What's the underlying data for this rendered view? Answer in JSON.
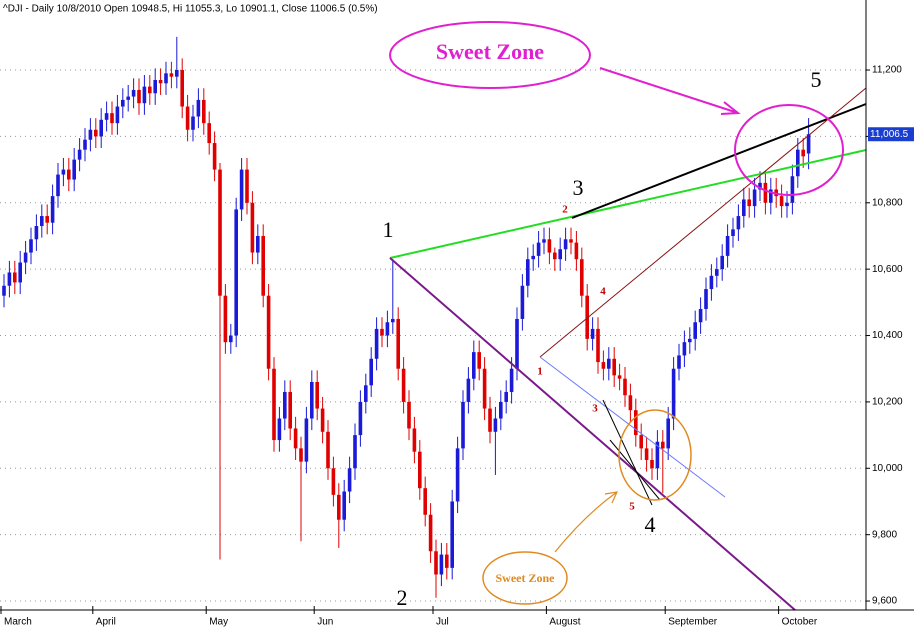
{
  "chart_data": {
    "type": "candlestick",
    "title": "^DJI - Daily 10/8/2010 Open 10948.5, Hi 11055.3, Lo 10901.1, Close 11006.5 (0.5%)",
    "up_color": "#1a1ad8",
    "down_color": "#e00000",
    "ylim": [
      9573,
      11411
    ],
    "yticks": [
      {
        "value": 9600,
        "label": "9,600"
      },
      {
        "value": 9800,
        "label": "9,800"
      },
      {
        "value": 10000,
        "label": "10,000"
      },
      {
        "value": 10200,
        "label": "10,200"
      },
      {
        "value": 10400,
        "label": "10,400"
      },
      {
        "value": 10600,
        "label": "10,600"
      },
      {
        "value": 10800,
        "label": "10,800"
      },
      {
        "value": 11000,
        "label": "11,000"
      },
      {
        "value": 11200,
        "label": "11,200"
      }
    ],
    "grid": true,
    "last_label": "11,006.5",
    "callouts": [
      "Sweet Zone",
      "Sweet Zone"
    ],
    "wave_labels": [
      "1",
      "2",
      "3",
      "4",
      "5"
    ],
    "sub_wave_labels": [
      "2",
      "1",
      "4",
      "3",
      "5"
    ],
    "categories": [
      "March",
      null,
      null,
      null,
      null,
      null,
      null,
      null,
      null,
      null,
      null,
      null,
      null,
      null,
      null,
      null,
      null,
      "April",
      null,
      null,
      null,
      null,
      null,
      null,
      null,
      null,
      null,
      null,
      null,
      null,
      null,
      null,
      null,
      null,
      null,
      null,
      null,
      null,
      "May",
      null,
      null,
      null,
      null,
      null,
      null,
      null,
      null,
      null,
      null,
      null,
      null,
      null,
      null,
      null,
      null,
      null,
      null,
      null,
      "Jun",
      null,
      null,
      null,
      null,
      null,
      null,
      null,
      null,
      null,
      null,
      null,
      null,
      null,
      null,
      null,
      null,
      null,
      null,
      null,
      null,
      null,
      "Jul",
      null,
      null,
      null,
      null,
      null,
      null,
      null,
      null,
      null,
      null,
      null,
      null,
      null,
      null,
      null,
      null,
      null,
      null,
      null,
      null,
      "August",
      null,
      null,
      null,
      null,
      null,
      null,
      null,
      null,
      null,
      null,
      null,
      null,
      null,
      null,
      null,
      null,
      null,
      null,
      null,
      null,
      null,
      "September",
      null,
      null,
      null,
      null,
      null,
      null,
      null,
      null,
      null,
      null,
      null,
      null,
      null,
      null,
      null,
      null,
      null,
      null,
      null,
      null,
      "October",
      null,
      null,
      null,
      null,
      null
    ],
    "open": [
      10520,
      10550,
      10590,
      10560,
      10620,
      10650,
      10690,
      10730,
      10760,
      10740,
      10820,
      10885,
      10900,
      10870,
      10930,
      10960,
      10990,
      11020,
      11000,
      11050,
      11070,
      11040,
      11090,
      11110,
      11120,
      11140,
      11100,
      11150,
      11130,
      11170,
      11160,
      11190,
      11180,
      11200,
      11090,
      11020,
      11060,
      11110,
      11040,
      10980,
      10900,
      10520,
      10380,
      10400,
      10780,
      10900,
      10800,
      10650,
      10700,
      10520,
      10300,
      10085,
      10150,
      10230,
      10120,
      10060,
      10020,
      10150,
      10260,
      10180,
      10110,
      10000,
      9920,
      9845,
      9930,
      10000,
      10100,
      10200,
      10250,
      10330,
      10420,
      10400,
      10440,
      10450,
      10300,
      10200,
      10120,
      10050,
      9940,
      9860,
      9750,
      9680,
      9740,
      9700,
      9900,
      10060,
      10200,
      10270,
      10350,
      10300,
      10180,
      10110,
      10150,
      10200,
      10230,
      10300,
      10450,
      10550,
      10630,
      10640,
      10680,
      10690,
      10650,
      10630,
      10660,
      10690,
      10680,
      10630,
      10520,
      10390,
      10420,
      10320,
      10300,
      10330,
      10280,
      10270,
      10220,
      10175,
      10100,
      10060,
      10025,
      10000,
      10080,
      10060,
      10150,
      10300,
      10340,
      10380,
      10390,
      10440,
      10480,
      10540,
      10580,
      10600,
      10640,
      10700,
      10720,
      10760,
      10810,
      10790,
      10840,
      10860,
      10800,
      10840,
      10820,
      10790,
      10800,
      10880,
      10960,
      10948.5
    ],
    "high": [
      10585,
      10625,
      10625,
      10655,
      10685,
      10725,
      10765,
      10795,
      10795,
      10855,
      10920,
      10935,
      10935,
      10965,
      10995,
      11025,
      11055,
      11055,
      11085,
      11105,
      11105,
      11125,
      11145,
      11155,
      11175,
      11175,
      11185,
      11185,
      11205,
      11205,
      11225,
      11225,
      11300,
      11235,
      11125,
      11095,
      11145,
      11145,
      11075,
      11015,
      10920,
      10555,
      10435,
      10815,
      10935,
      10935,
      10835,
      10735,
      10735,
      10555,
      10335,
      10185,
      10265,
      10265,
      10155,
      10095,
      10185,
      10295,
      10295,
      10215,
      10145,
      10035,
      9955,
      9965,
      10035,
      10135,
      10235,
      10285,
      10365,
      10455,
      10455,
      10475,
      10630,
      10485,
      10335,
      10235,
      10155,
      10085,
      9975,
      9895,
      9785,
      9775,
      9775,
      9935,
      10095,
      10235,
      10305,
      10385,
      10385,
      10335,
      10215,
      10185,
      10235,
      10265,
      10335,
      10485,
      10585,
      10665,
      10675,
      10715,
      10725,
      10725,
      10665,
      10695,
      10725,
      10725,
      10715,
      10665,
      10555,
      10455,
      10455,
      10355,
      10365,
      10365,
      10315,
      10305,
      10255,
      10210,
      10135,
      10095,
      10060,
      10115,
      10115,
      10185,
      10335,
      10375,
      10415,
      10425,
      10475,
      10515,
      10575,
      10615,
      10635,
      10675,
      10735,
      10755,
      10795,
      10845,
      10845,
      10875,
      10895,
      10895,
      10875,
      10875,
      10855,
      10835,
      10915,
      10995,
      10995,
      11055.3
    ],
    "low": [
      10485,
      10515,
      10525,
      10525,
      10585,
      10615,
      10655,
      10695,
      10705,
      10705,
      10785,
      10850,
      10835,
      10835,
      10895,
      10925,
      10955,
      10965,
      10965,
      11015,
      11005,
      11005,
      11055,
      11075,
      11085,
      11065,
      11065,
      11095,
      11095,
      11125,
      11125,
      11145,
      11145,
      11055,
      10985,
      10985,
      11025,
      11005,
      10945,
      10865,
      9725,
      10345,
      10345,
      10365,
      10745,
      10765,
      10615,
      10615,
      10485,
      10265,
      10050,
      10050,
      10115,
      10085,
      10025,
      9780,
      9985,
      10115,
      10145,
      10075,
      9965,
      9885,
      9760,
      9810,
      9895,
      9965,
      10065,
      10165,
      10215,
      10295,
      10365,
      10365,
      10405,
      10265,
      10165,
      10085,
      10015,
      9905,
      9825,
      9715,
      9610,
      9645,
      9665,
      9665,
      9865,
      10025,
      10165,
      10235,
      10265,
      10145,
      10075,
      9980,
      10115,
      10165,
      10195,
      10265,
      10415,
      10515,
      10595,
      10605,
      10645,
      10615,
      10595,
      10595,
      10625,
      10645,
      10595,
      10485,
      10355,
      10355,
      10285,
      10265,
      10265,
      10245,
      10235,
      10185,
      10140,
      10065,
      10025,
      9990,
      9965,
      9965,
      9925,
      10025,
      10115,
      10265,
      10305,
      10345,
      10355,
      10405,
      10445,
      10505,
      10545,
      10565,
      10605,
      10665,
      10685,
      10725,
      10755,
      10755,
      10805,
      10765,
      10765,
      10785,
      10755,
      10755,
      10765,
      10845,
      10905,
      10901.1
    ],
    "close": [
      10550,
      10590,
      10560,
      10620,
      10650,
      10690,
      10730,
      10760,
      10740,
      10820,
      10885,
      10900,
      10870,
      10930,
      10960,
      10990,
      11020,
      11000,
      11050,
      11070,
      11040,
      11090,
      11110,
      11120,
      11140,
      11100,
      11150,
      11130,
      11170,
      11160,
      11190,
      11180,
      11200,
      11090,
      11020,
      11060,
      11110,
      11040,
      10980,
      10900,
      10520,
      10380,
      10400,
      10780,
      10900,
      10800,
      10650,
      10700,
      10520,
      10300,
      10085,
      10150,
      10230,
      10120,
      10060,
      10020,
      10150,
      10260,
      10180,
      10110,
      10000,
      9920,
      9845,
      9930,
      10000,
      10100,
      10200,
      10250,
      10330,
      10420,
      10400,
      10440,
      10450,
      10300,
      10200,
      10120,
      10050,
      9940,
      9860,
      9750,
      9680,
      9740,
      9700,
      9900,
      10060,
      10200,
      10270,
      10350,
      10300,
      10180,
      10110,
      10150,
      10200,
      10230,
      10300,
      10450,
      10550,
      10630,
      10640,
      10680,
      10690,
      10650,
      10630,
      10660,
      10690,
      10680,
      10630,
      10520,
      10390,
      10420,
      10320,
      10300,
      10330,
      10280,
      10270,
      10220,
      10175,
      10100,
      10060,
      10025,
      10000,
      10080,
      10060,
      10150,
      10300,
      10340,
      10380,
      10390,
      10440,
      10480,
      10540,
      10580,
      10600,
      10640,
      10700,
      10720,
      10760,
      10810,
      10790,
      10840,
      10860,
      10800,
      10840,
      10820,
      10790,
      10800,
      10880,
      10960,
      10940,
      11006.5
    ]
  }
}
